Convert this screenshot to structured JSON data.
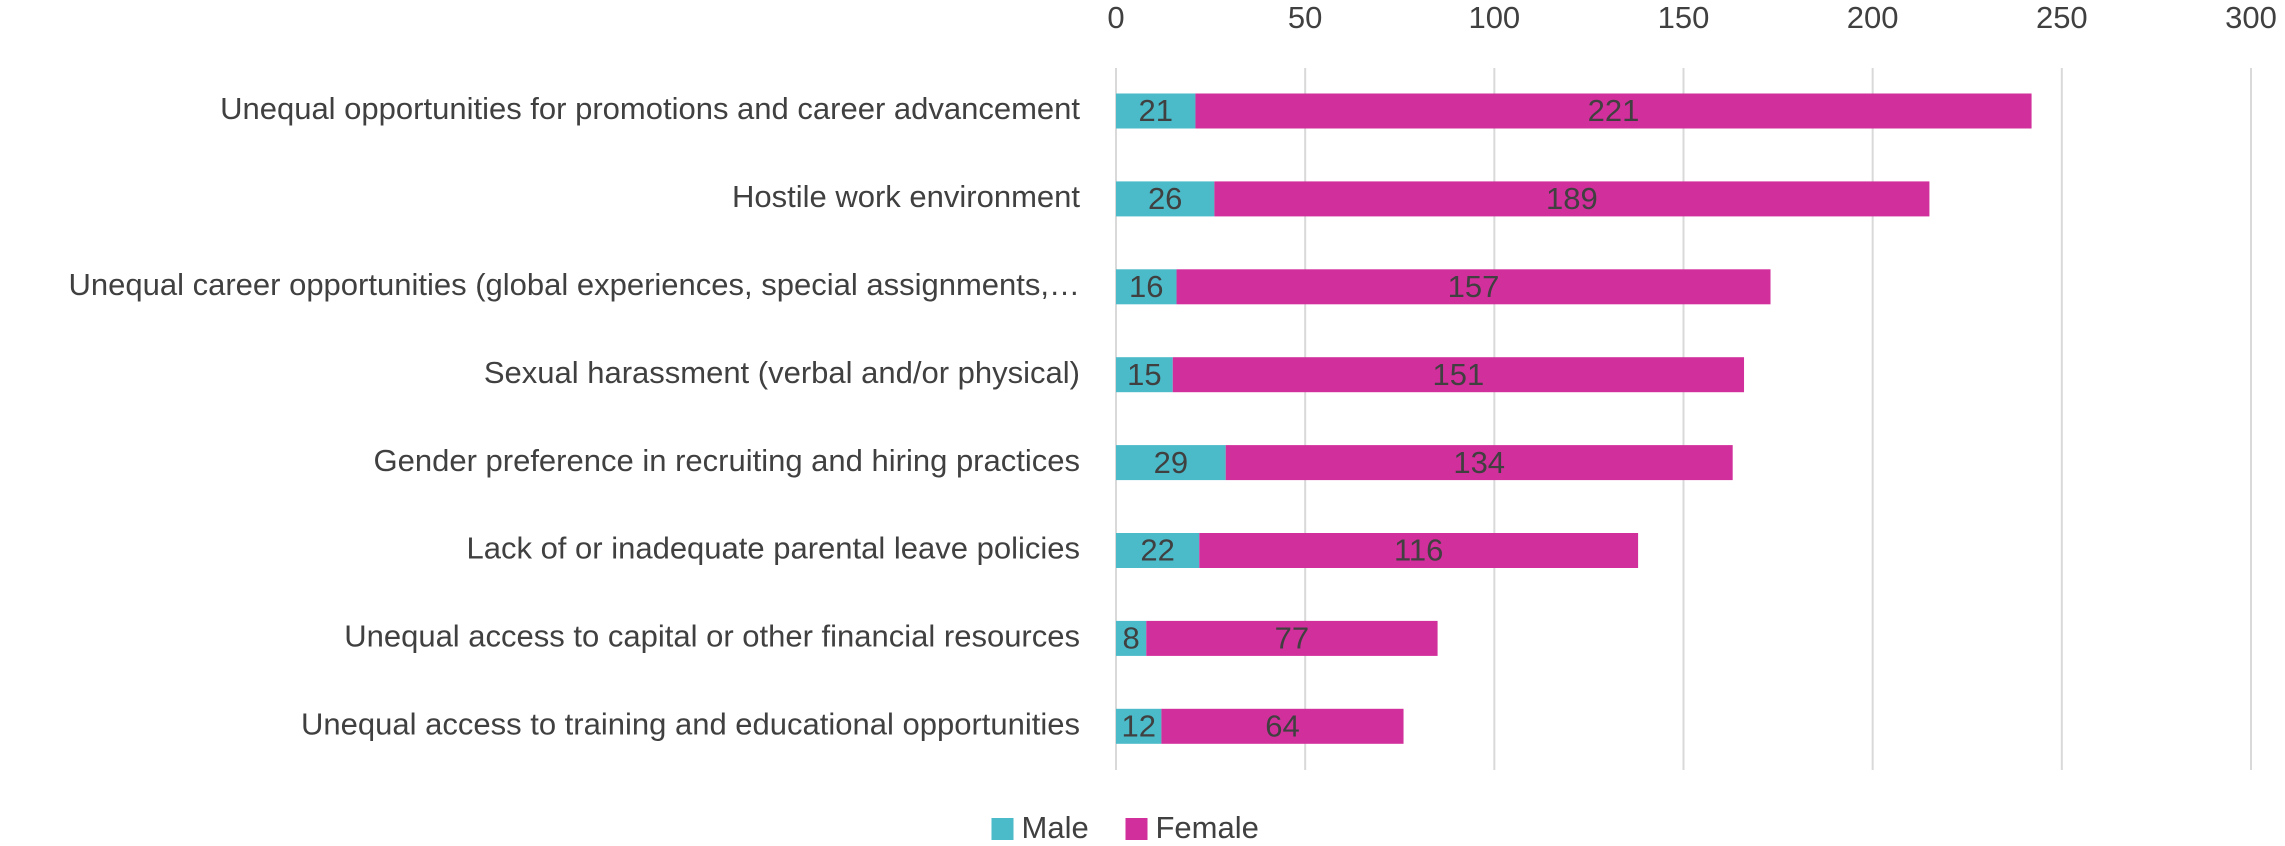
{
  "chart_data": {
    "type": "stacked_barh",
    "categories": [
      "Unequal opportunities for promotions and career advancement",
      "Hostile work environment",
      "Unequal career opportunities (global experiences, special assignments,…",
      "Sexual harassment (verbal and/or physical)",
      "Gender preference in recruiting and hiring practices",
      "Lack of or inadequate parental leave policies",
      "Unequal access to capital or other financial resources",
      "Unequal access to training and educational opportunities"
    ],
    "series": [
      {
        "name": "Male",
        "color": "#4bbac9",
        "values": [
          21,
          26,
          16,
          15,
          29,
          22,
          8,
          12
        ]
      },
      {
        "name": "Female",
        "color": "#d12f9b",
        "values": [
          221,
          189,
          157,
          151,
          134,
          116,
          77,
          64
        ]
      }
    ],
    "xlim": [
      0,
      300
    ],
    "xticks": [
      0,
      50,
      100,
      150,
      200,
      250,
      300
    ],
    "grid": true,
    "legend": "bottom"
  }
}
